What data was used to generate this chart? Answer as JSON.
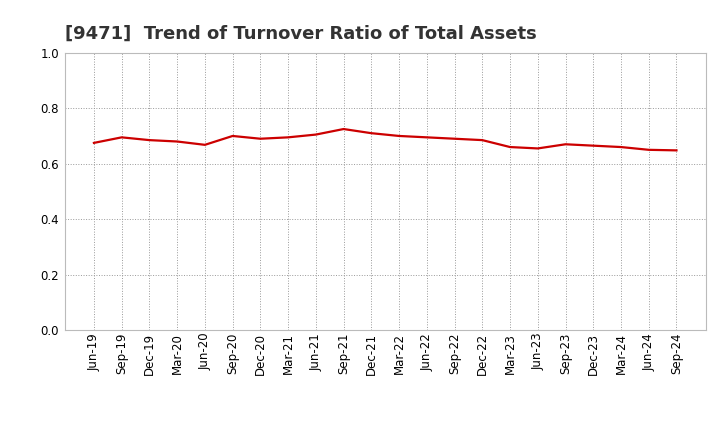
{
  "title": "[9471]  Trend of Turnover Ratio of Total Assets",
  "labels": [
    "Jun-19",
    "Sep-19",
    "Dec-19",
    "Mar-20",
    "Jun-20",
    "Sep-20",
    "Dec-20",
    "Mar-21",
    "Jun-21",
    "Sep-21",
    "Dec-21",
    "Mar-22",
    "Jun-22",
    "Sep-22",
    "Dec-22",
    "Mar-23",
    "Jun-23",
    "Sep-23",
    "Dec-23",
    "Mar-24",
    "Jun-24",
    "Sep-24"
  ],
  "values": [
    0.675,
    0.695,
    0.685,
    0.68,
    0.668,
    0.7,
    0.69,
    0.695,
    0.705,
    0.725,
    0.71,
    0.7,
    0.695,
    0.69,
    0.685,
    0.66,
    0.655,
    0.67,
    0.665,
    0.66,
    0.65,
    0.648
  ],
  "line_color": "#cc0000",
  "background_color": "#ffffff",
  "plot_bg_color": "#ffffff",
  "ylim": [
    0.0,
    1.0
  ],
  "yticks": [
    0.0,
    0.2,
    0.4,
    0.6,
    0.8,
    1.0
  ],
  "grid_color": "#999999",
  "title_fontsize": 13,
  "tick_fontsize": 8.5,
  "linewidth": 1.6,
  "title_color": "#333333"
}
